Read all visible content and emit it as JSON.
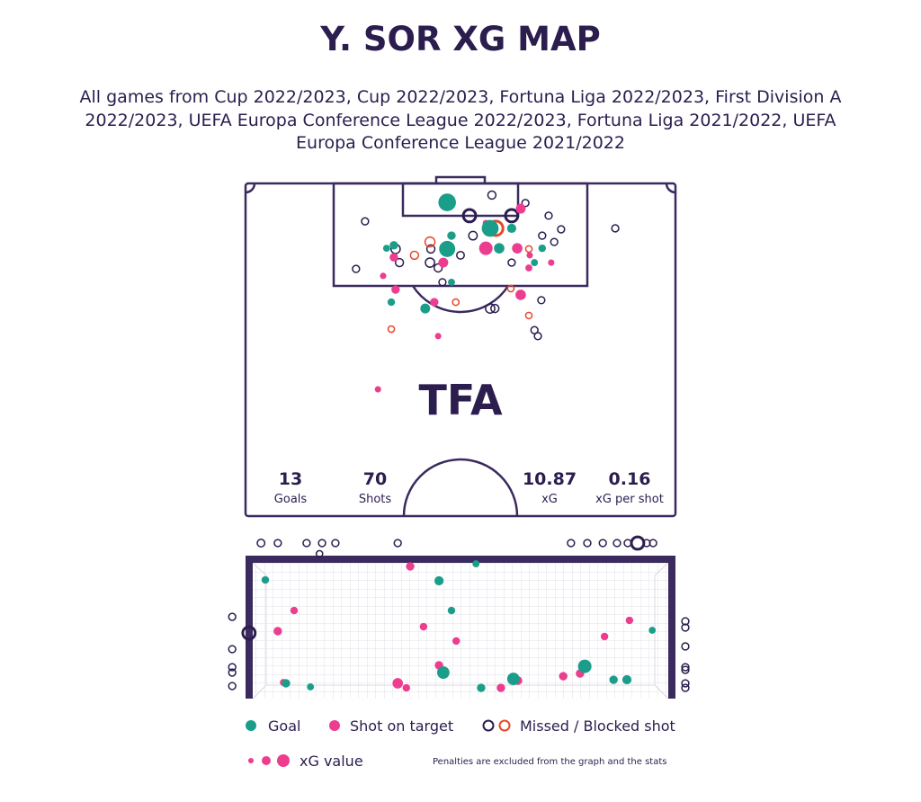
{
  "title": "Y. SOR XG MAP",
  "subtitle": [
    "All games from Cup 2022/2023, Cup 2022/2023, Fortuna Liga 2022/2023, First Division A",
    "2022/2023, UEFA Europa Conference League 2022/2023, Fortuna Liga 2021/2022, UEFA",
    "Europa Conference League 2021/2022"
  ],
  "logo": "TFA",
  "stats": [
    {
      "value": 13,
      "label": "Goals"
    },
    {
      "value": 70,
      "label": "Shots"
    },
    {
      "value": 10.87,
      "label": "xG"
    },
    {
      "value": 0.16,
      "label": "xG per shot"
    }
  ],
  "size_legend": "xG value",
  "note": "Penalties are excluded from the graph and the stats",
  "chart_data": [
    {
      "type": "scatter",
      "xlim": [
        0,
        100
      ],
      "ylim": [
        100,
        0
      ],
      "series": [
        {
          "name": "Missed / Blocked shot",
          "color": "#2b1d4e",
          "filled": false,
          "x": [
            52.1,
            61.9,
            57.3,
            65.1,
            70.5,
            73.4,
            27.8,
            86.0,
            52.9,
            34.9,
            43.1,
            35.8,
            42.9,
            44.8,
            50.0,
            25.7,
            45.8,
            56.9,
            58.0,
            71.8,
            69.0,
            61.9,
            68.8,
            67.2,
            68.0
          ],
          "y": [
            9.7,
            9.7,
            3.5,
            5.9,
            9.7,
            13.8,
            11.4,
            13.5,
            15.7,
            19.7,
            19.7,
            23.8,
            23.8,
            25.4,
            21.6,
            25.7,
            29.7,
            37.6,
            37.6,
            17.6,
            15.7,
            23.8,
            35.1,
            44.1,
            45.9
          ],
          "size": [
            0.2,
            0.2,
            0.05,
            0.03,
            0.03,
            0.03,
            0.03,
            0.03,
            0.06,
            0.08,
            0.05,
            0.05,
            0.08,
            0.05,
            0.04,
            0.03,
            0.03,
            0.08,
            0.05,
            0.03,
            0.03,
            0.03,
            0.03,
            0.03,
            0.03
          ]
        },
        {
          "color": "#e8462b",
          "filled": false,
          "x": [
            58.2,
            42.9,
            39.3,
            65.9,
            48.9,
            61.7,
            65.9,
            33.9
          ],
          "y": [
            13.5,
            17.6,
            21.6,
            19.7,
            35.7,
            31.6,
            39.7,
            43.8
          ],
          "size": [
            0.3,
            0.1,
            0.05,
            0.02,
            0.02,
            0.02,
            0.02,
            0.02
          ]
        },
        {
          "name": "Shot on target",
          "color": "#ec3d8f",
          "filled": true,
          "x": [
            64.0,
            55.9,
            63.2,
            46.0,
            34.9,
            43.9,
            64.0,
            65.9,
            71.1,
            66.1,
            32.0,
            44.8,
            30.8,
            55.9,
            34.5
          ],
          "y": [
            7.6,
            19.5,
            19.5,
            23.8,
            31.9,
            35.7,
            33.5,
            25.4,
            23.8,
            21.6,
            27.8,
            45.9,
            61.9,
            11.9,
            22.2
          ],
          "size": [
            0.1,
            0.25,
            0.12,
            0.1,
            0.06,
            0.06,
            0.12,
            0.03,
            0.02,
            0.02,
            0.02,
            0.02,
            0.02,
            0.02,
            0.06
          ]
        },
        {
          "name": "Goal",
          "color": "#1a9e8a",
          "filled": true,
          "x": [
            46.9,
            56.9,
            46.9,
            61.9,
            47.9,
            59.0,
            32.8,
            69.0,
            41.8,
            33.9,
            67.2,
            47.9,
            34.5
          ],
          "y": [
            5.7,
            13.5,
            19.7,
            13.5,
            15.7,
            19.5,
            19.5,
            19.5,
            37.6,
            35.7,
            23.8,
            29.7,
            18.6
          ],
          "size": [
            0.5,
            0.45,
            0.4,
            0.08,
            0.06,
            0.12,
            0.03,
            0.04,
            0.1,
            0.04,
            0.03,
            0.03,
            0.06
          ]
        }
      ]
    },
    {
      "type": "scatter",
      "xlim": [
        -10,
        110
      ],
      "ylim": [
        0,
        115
      ],
      "series": [
        {
          "color": "#2b1d4e",
          "filled": false,
          "x": [
            3.6,
            7.5,
            14.2,
            17.8,
            20.9,
            17.2,
            35.4,
            75.7,
            79.5,
            83.1,
            86.4,
            88.9,
            91.2,
            93.3,
            94.8,
            -3.1,
            -3.1,
            -3.1,
            -3.1,
            -3.1,
            0.8,
            102.3,
            102.3,
            102.3,
            102.3,
            102.3,
            102.3,
            102.3
          ],
          "y": [
            108.8,
            108.8,
            108.8,
            108.8,
            108.8,
            101.3,
            108.8,
            108.8,
            108.8,
            108.8,
            108.8,
            108.8,
            108.8,
            108.8,
            108.8,
            57.2,
            34.6,
            22.0,
            18.2,
            8.8,
            45.9,
            54.1,
            49.7,
            36.5,
            22.0,
            20.1,
            10.7,
            7.5
          ],
          "size": [
            0.04,
            0.03,
            0.03,
            0.03,
            0.03,
            0.02,
            0.03,
            0.03,
            0.03,
            0.03,
            0.03,
            0.03,
            0.2,
            0.03,
            0.03,
            0.03,
            0.03,
            0.03,
            0.03,
            0.03,
            0.2,
            0.03,
            0.03,
            0.03,
            0.03,
            0.03,
            0.03,
            0.03
          ]
        },
        {
          "color": "#ec3d8f",
          "filled": true,
          "x": [
            38.3,
            11.3,
            7.5,
            41.4,
            49.0,
            45.0,
            35.4,
            37.4,
            59.4,
            63.4,
            73.9,
            77.8,
            83.5,
            89.3,
            8.8
          ],
          "y": [
            92.5,
            61.6,
            47.2,
            50.3,
            40.3,
            23.3,
            10.7,
            7.5,
            7.5,
            12.6,
            15.7,
            17.6,
            43.4,
            54.7,
            11.3
          ],
          "size": [
            0.06,
            0.04,
            0.06,
            0.04,
            0.04,
            0.06,
            0.12,
            0.04,
            0.06,
            0.06,
            0.06,
            0.06,
            0.04,
            0.04,
            0.03
          ]
        },
        {
          "color": "#1a9e8a",
          "filled": true,
          "x": [
            4.6,
            53.6,
            45.0,
            47.9,
            46.0,
            62.3,
            78.9,
            85.6,
            88.7,
            94.6,
            54.8,
            15.1,
            9.4
          ],
          "y": [
            83.0,
            94.3,
            82.4,
            61.6,
            18.2,
            13.8,
            22.6,
            13.2,
            13.2,
            47.8,
            7.5,
            8.2,
            10.7
          ],
          "size": [
            0.04,
            0.03,
            0.08,
            0.04,
            0.2,
            0.2,
            0.25,
            0.06,
            0.08,
            0.03,
            0.06,
            0.03,
            0.06
          ]
        }
      ]
    }
  ]
}
